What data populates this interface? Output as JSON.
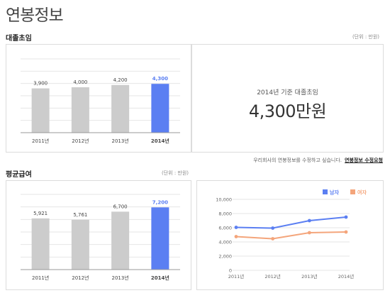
{
  "page": {
    "title": "연봉정보"
  },
  "starting_salary": {
    "title": "대졸초임",
    "unit": "(단위 : 만원)"
  },
  "kpi": {
    "caption": "2014년 기준 대졸초임",
    "value": "4,300만원"
  },
  "notice": {
    "text": "우리회사의 연봉정보를 수정하고 싶습니다.",
    "link": "연봉정보 수정요청"
  },
  "average_pay": {
    "title": "평균급여",
    "unit": "(단위 : 만원)"
  },
  "colors": {
    "bar": "#cccccc",
    "highlight": "#5b7ff2",
    "male": "#5b7ff2",
    "female": "#f4a57b",
    "grid": "#e6e6e6"
  },
  "chart_data": [
    {
      "type": "bar",
      "title": "대졸초임",
      "categories": [
        "2011년",
        "2012년",
        "2013년",
        "2014년"
      ],
      "values": [
        3900,
        4000,
        4200,
        4300
      ],
      "value_labels": [
        "3,900",
        "4,000",
        "4,200",
        "4,300"
      ],
      "highlight_index": 3,
      "ylim": [
        0,
        6500
      ]
    },
    {
      "type": "bar",
      "title": "평균급여",
      "categories": [
        "2011년",
        "2012년",
        "2013년",
        "2014년"
      ],
      "values": [
        5921,
        5761,
        6700,
        7200
      ],
      "value_labels": [
        "5,921",
        "5,761",
        "6,700",
        "7,200"
      ],
      "highlight_index": 3,
      "ylim": [
        0,
        8700
      ]
    },
    {
      "type": "line",
      "x": [
        "2011년",
        "2012년",
        "2013년",
        "2014년"
      ],
      "yticks": [
        "10,000",
        "8,000",
        "6,000",
        "4,000",
        "2,000",
        "0"
      ],
      "ylim": [
        0,
        10000
      ],
      "legend_position": "top-right",
      "series": [
        {
          "name": "남자",
          "values": [
            6050,
            5950,
            7000,
            7500
          ]
        },
        {
          "name": "여자",
          "values": [
            4750,
            4450,
            5300,
            5400
          ]
        }
      ]
    }
  ]
}
